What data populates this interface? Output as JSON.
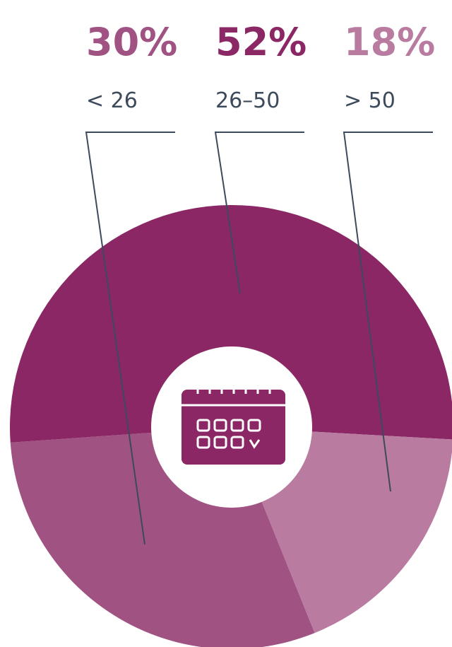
{
  "chart_data": {
    "type": "pie",
    "categories": [
      "< 26",
      "26–50",
      "> 50"
    ],
    "values": [
      30,
      52,
      18
    ],
    "value_labels": [
      "30%",
      "52%",
      "18%"
    ],
    "colors": [
      "#a05282",
      "#8b2765",
      "#b97ba0"
    ]
  }
}
